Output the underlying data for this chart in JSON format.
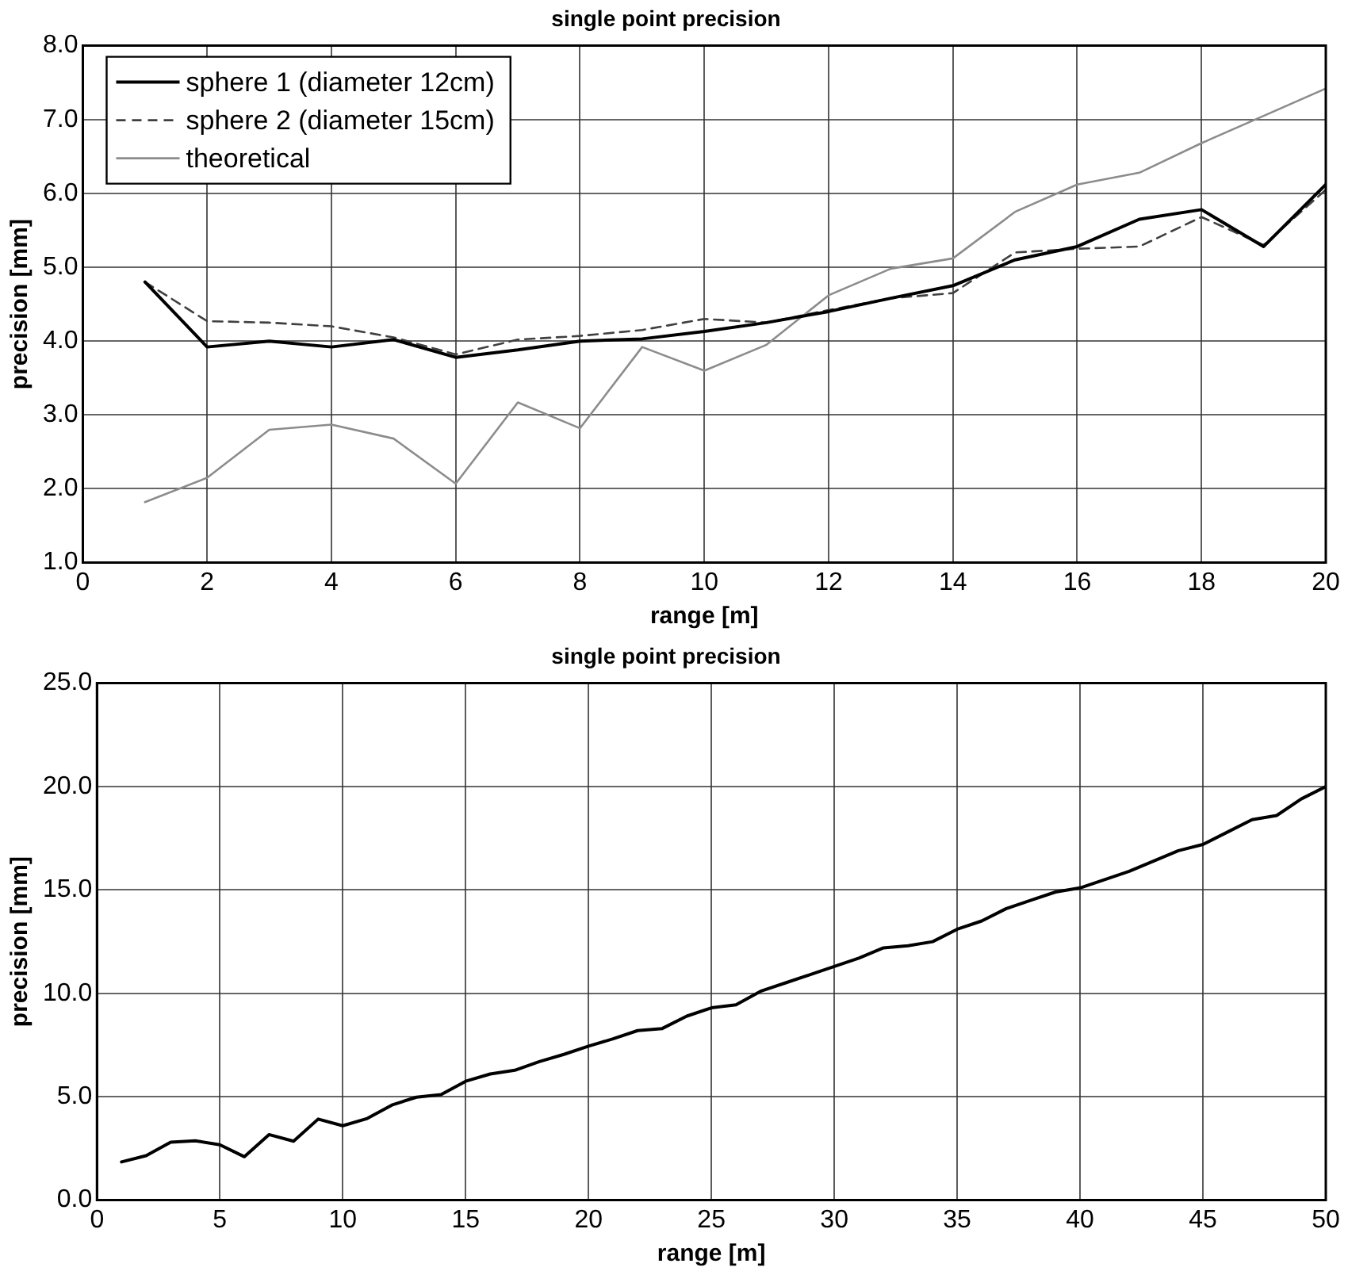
{
  "chart_data": [
    {
      "type": "line",
      "title": "single point precision",
      "xlabel": "range [m]",
      "ylabel": "precision [mm]",
      "x": [
        1,
        2,
        3,
        4,
        5,
        6,
        7,
        8,
        9,
        10,
        11,
        12,
        13,
        14,
        15,
        16,
        17,
        18,
        19,
        20
      ],
      "series": [
        {
          "name": "sphere 1 (diameter 12cm)",
          "color": "#000000",
          "line_style": "solid",
          "values": [
            4.8,
            3.92,
            4.0,
            3.92,
            4.02,
            3.78,
            3.88,
            4.0,
            4.03,
            4.13,
            4.25,
            4.4,
            4.58,
            4.75,
            5.1,
            5.28,
            5.65,
            5.78,
            5.28,
            6.12
          ]
        },
        {
          "name": "sphere 2 (diameter 15cm)",
          "color": "#404040",
          "line_style": "dashed",
          "values": [
            4.8,
            4.27,
            4.25,
            4.2,
            4.05,
            3.82,
            4.02,
            4.07,
            4.15,
            4.3,
            4.25,
            4.42,
            4.58,
            4.65,
            5.2,
            5.25,
            5.28,
            5.68,
            5.3,
            6.05
          ]
        },
        {
          "name": "theoretical",
          "color": "#8c8c8c",
          "line_style": "solid",
          "values": [
            1.82,
            2.15,
            2.8,
            2.87,
            2.68,
            2.07,
            3.17,
            2.82,
            3.92,
            3.6,
            3.95,
            4.62,
            4.98,
            5.12,
            5.75,
            6.12,
            6.28,
            6.68,
            7.05,
            7.42
          ]
        }
      ],
      "xlim": [
        0,
        20
      ],
      "xticks": [
        0,
        2,
        4,
        6,
        8,
        10,
        12,
        14,
        16,
        18,
        20
      ],
      "ylim": [
        1,
        8
      ],
      "yticks": [
        {
          "value": 1,
          "label": "1.0"
        },
        {
          "value": 2,
          "label": "2.0"
        },
        {
          "value": 3,
          "label": "3.0"
        },
        {
          "value": 4,
          "label": "4.0"
        },
        {
          "value": 5,
          "label": "5.0"
        },
        {
          "value": 6,
          "label": "6.0"
        },
        {
          "value": 7,
          "label": "7.0"
        },
        {
          "value": 8,
          "label": "8.0"
        }
      ],
      "grid": true,
      "legend": "top left",
      "marker": "none"
    },
    {
      "type": "line",
      "title": "single point precision",
      "xlabel": "range [m]",
      "ylabel": "precision [mm]",
      "x": [
        1,
        2,
        3,
        4,
        5,
        6,
        7,
        8,
        9,
        10,
        11,
        12,
        13,
        14,
        15,
        16,
        17,
        18,
        19,
        20,
        21,
        22,
        23,
        24,
        25,
        26,
        27,
        28,
        29,
        30,
        31,
        32,
        33,
        34,
        35,
        36,
        37,
        38,
        39,
        40,
        41,
        42,
        43,
        44,
        45,
        46,
        47,
        48,
        49,
        50
      ],
      "series": [
        {
          "color": "#000000",
          "values": [
            1.85,
            2.15,
            2.8,
            2.87,
            2.68,
            2.1,
            3.17,
            2.85,
            3.92,
            3.6,
            3.95,
            4.6,
            4.98,
            5.1,
            5.75,
            6.1,
            6.28,
            6.7,
            7.05,
            7.45,
            7.8,
            8.2,
            8.3,
            8.9,
            9.3,
            9.45,
            10.1,
            10.5,
            10.9,
            11.3,
            11.7,
            12.2,
            12.3,
            12.5,
            13.1,
            13.5,
            14.1,
            14.5,
            14.9,
            15.1,
            15.5,
            15.9,
            16.4,
            16.9,
            17.2,
            17.8,
            18.4,
            18.6,
            19.4,
            20.0
          ]
        }
      ],
      "xlim": [
        0,
        50
      ],
      "xticks": [
        0,
        5,
        10,
        15,
        20,
        25,
        30,
        35,
        40,
        45,
        50
      ],
      "ylim": [
        0,
        25
      ],
      "yticks": [
        {
          "value": 0,
          "label": "0.0"
        },
        {
          "value": 5,
          "label": "5.0"
        },
        {
          "value": 10,
          "label": "10.0"
        },
        {
          "value": 15,
          "label": "15.0"
        },
        {
          "value": 20,
          "label": "20.0"
        },
        {
          "value": 25,
          "label": "25.0"
        }
      ],
      "grid": true,
      "marker": "none"
    }
  ]
}
